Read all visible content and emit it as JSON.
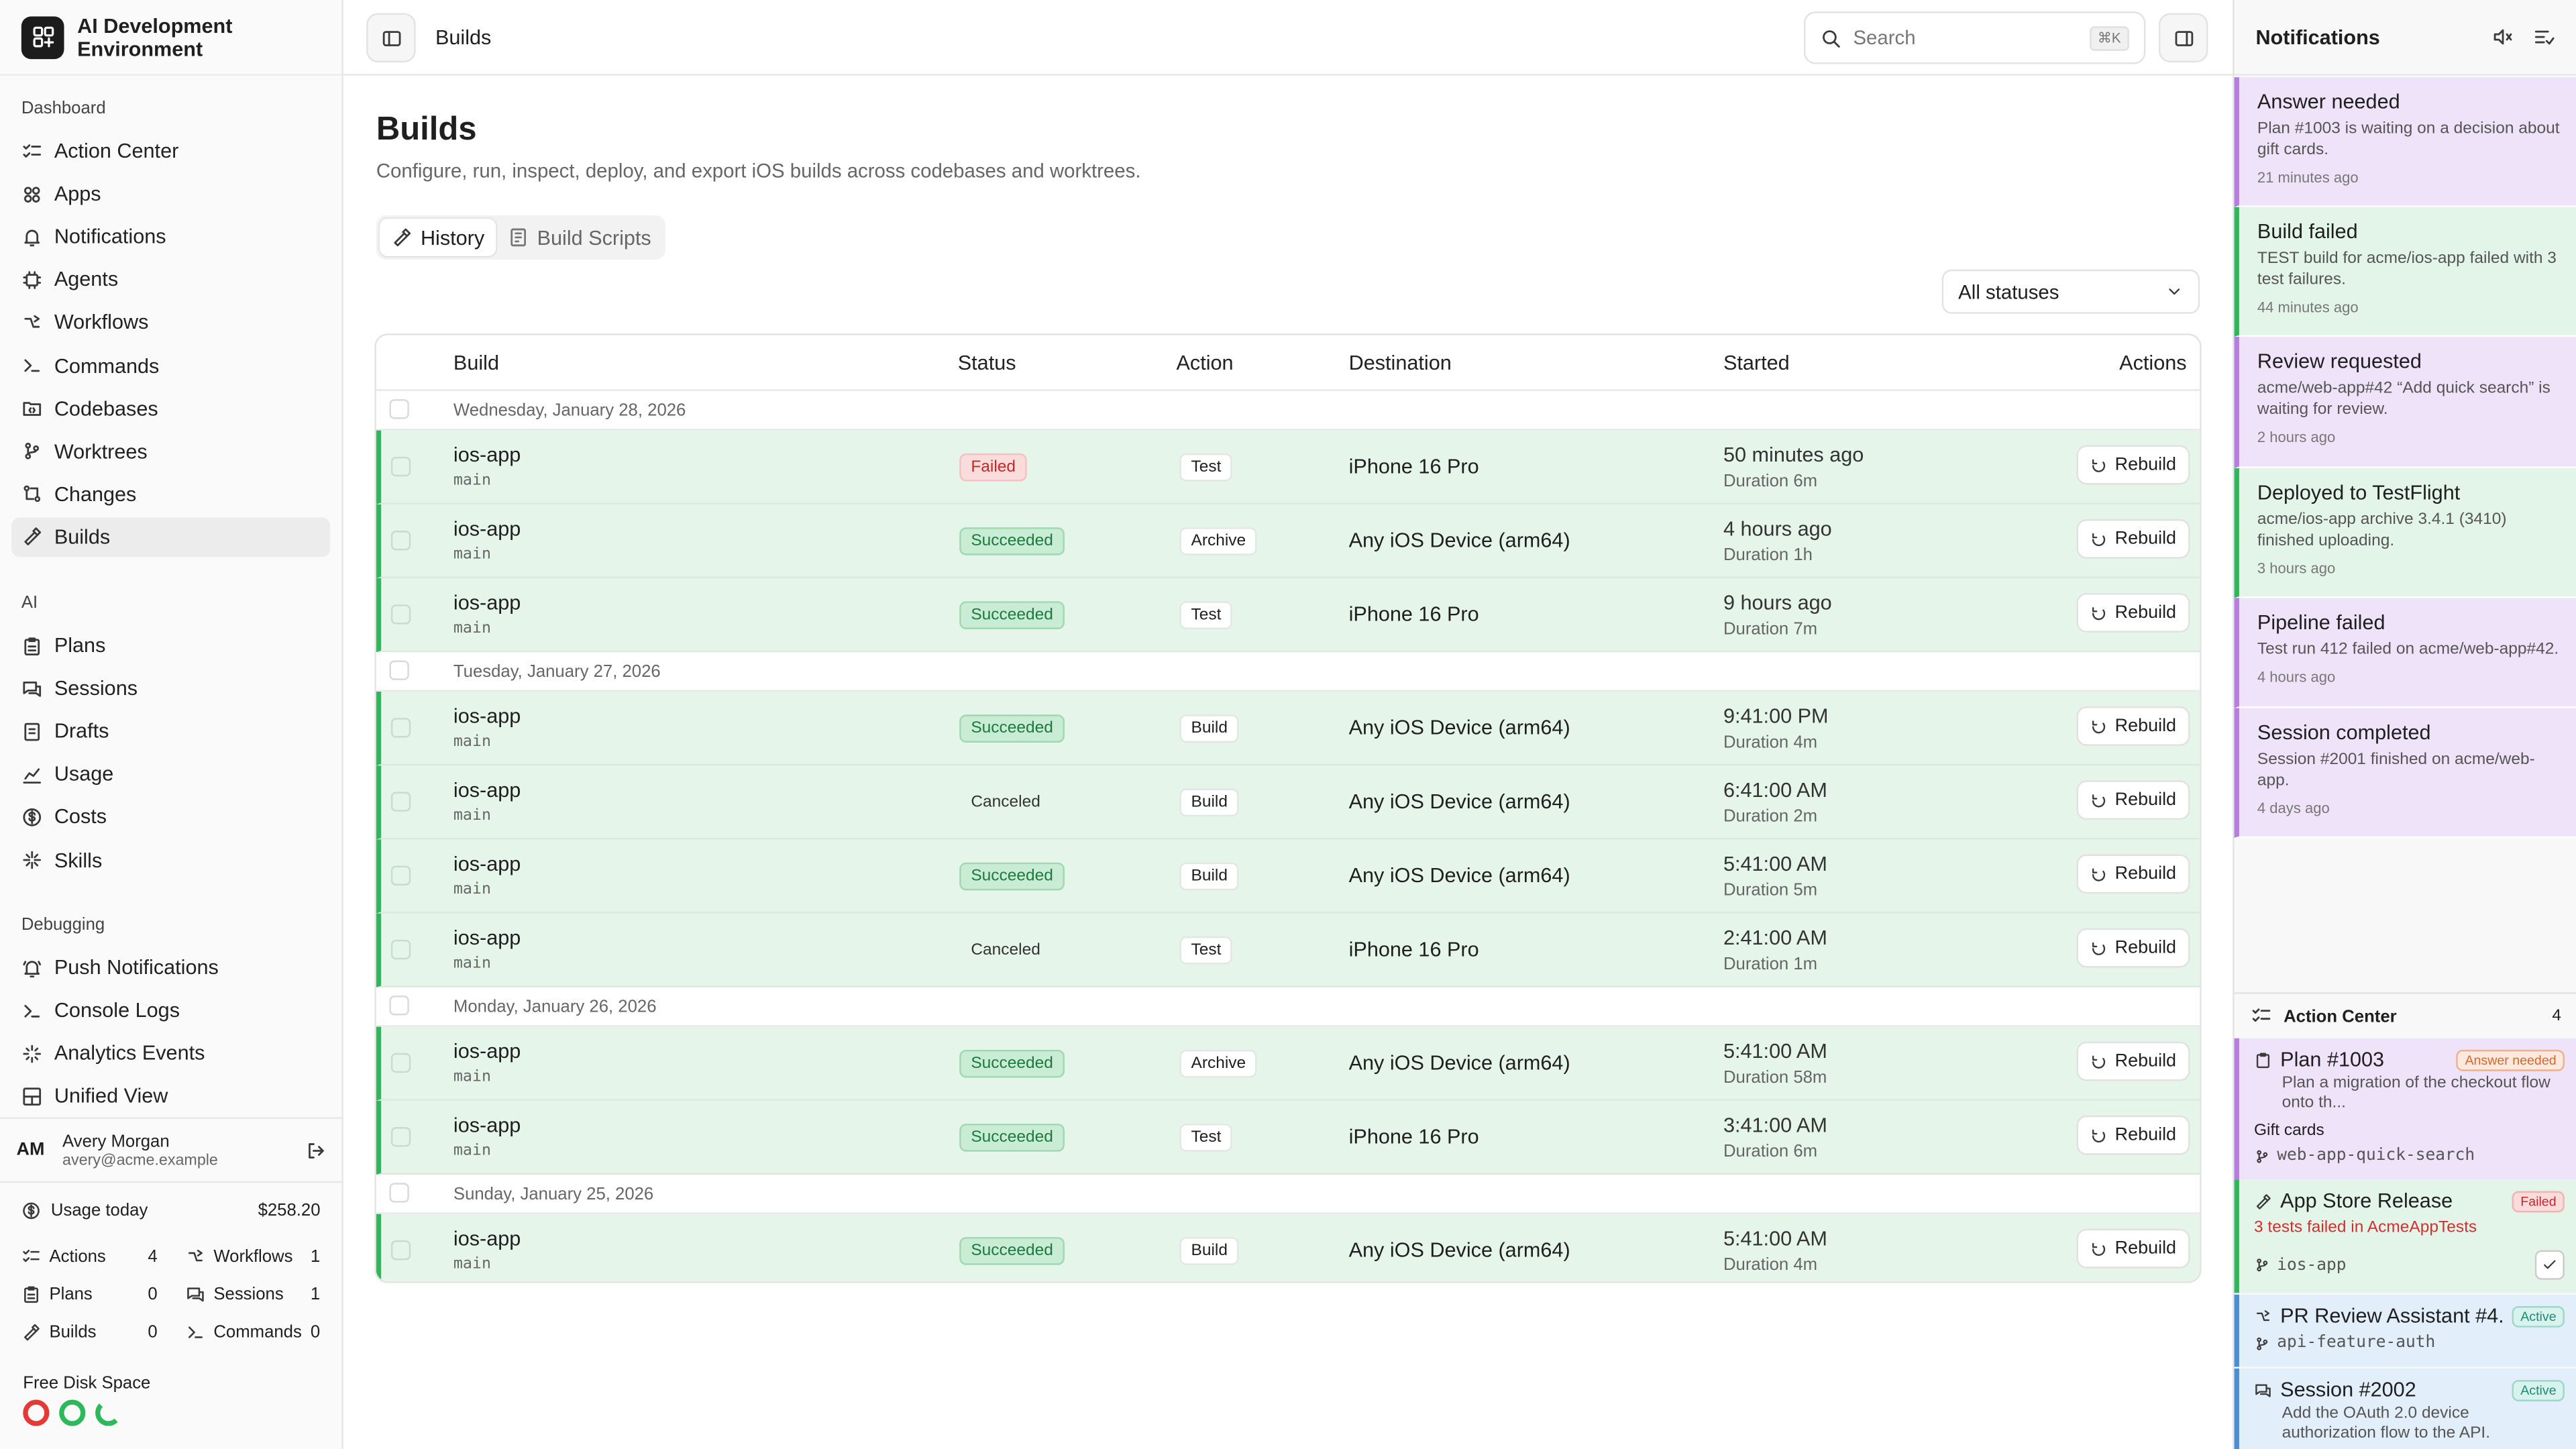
{
  "app": {
    "title": "AI Development Environment"
  },
  "sidebar": {
    "sections": [
      {
        "label": "Dashboard",
        "items": [
          {
            "label": "Action Center",
            "icon": "list-checks-icon"
          },
          {
            "label": "Apps",
            "icon": "apps-icon"
          },
          {
            "label": "Notifications",
            "icon": "bell-icon"
          },
          {
            "label": "Agents",
            "icon": "cpu-icon"
          },
          {
            "label": "Workflows",
            "icon": "workflow-icon"
          },
          {
            "label": "Commands",
            "icon": "terminal-icon"
          },
          {
            "label": "Codebases",
            "icon": "folder-code-icon"
          },
          {
            "label": "Worktrees",
            "icon": "git-branch-icon"
          },
          {
            "label": "Changes",
            "icon": "git-compare-icon"
          },
          {
            "label": "Builds",
            "icon": "hammer-icon"
          }
        ]
      },
      {
        "label": "AI",
        "items": [
          {
            "label": "Plans",
            "icon": "clipboard-icon"
          },
          {
            "label": "Sessions",
            "icon": "chat-icon"
          },
          {
            "label": "Drafts",
            "icon": "drafts-icon"
          },
          {
            "label": "Usage",
            "icon": "chart-icon"
          },
          {
            "label": "Costs",
            "icon": "dollar-icon"
          },
          {
            "label": "Skills",
            "icon": "sparkles-icon"
          }
        ]
      },
      {
        "label": "Debugging",
        "items": [
          {
            "label": "Push Notifications",
            "icon": "bell-ring-icon"
          },
          {
            "label": "Console Logs",
            "icon": "terminal-icon"
          },
          {
            "label": "Analytics Events",
            "icon": "activity-icon"
          },
          {
            "label": "Unified View",
            "icon": "layout-icon"
          }
        ]
      }
    ],
    "active": "Builds",
    "user": {
      "initials": "AM",
      "name": "Avery Morgan",
      "email": "avery@acme.example"
    },
    "usage": {
      "label": "Usage today",
      "value": "$258.20"
    },
    "stats": [
      {
        "label": "Actions",
        "value": "4",
        "icon": "list-checks-icon"
      },
      {
        "label": "Workflows",
        "value": "1",
        "icon": "workflow-icon"
      },
      {
        "label": "Plans",
        "value": "0",
        "icon": "clipboard-icon"
      },
      {
        "label": "Sessions",
        "value": "1",
        "icon": "chat-icon"
      },
      {
        "label": "Builds",
        "value": "0",
        "icon": "hammer-icon"
      },
      {
        "label": "Commands",
        "value": "0",
        "icon": "terminal-icon"
      }
    ],
    "disk": {
      "label": "Free Disk Space",
      "colors": [
        "#e53935",
        "#2eb85c",
        "#2eb85c"
      ]
    }
  },
  "topbar": {
    "breadcrumb": "Builds",
    "search_placeholder": "Search",
    "search_shortcut": "⌘K"
  },
  "page": {
    "title": "Builds",
    "subtitle": "Configure, run, inspect, deploy, and export iOS builds across codebases and worktrees.",
    "tabs": [
      {
        "label": "History",
        "active": true
      },
      {
        "label": "Build Scripts",
        "active": false
      }
    ],
    "status_filter": "All statuses",
    "columns": {
      "build": "Build",
      "status": "Status",
      "action": "Action",
      "destination": "Destination",
      "started": "Started",
      "actions": "Actions"
    },
    "rebuild_label": "Rebuild",
    "groups": [
      {
        "date": "Wednesday, January 28, 2026",
        "rows": [
          {
            "name": "ios-app",
            "branch": "main",
            "status": "Failed",
            "action": "Test",
            "destination": "iPhone 16 Pro",
            "started": "50 minutes ago",
            "duration": "Duration 6m"
          },
          {
            "name": "ios-app",
            "branch": "main",
            "status": "Succeeded",
            "action": "Archive",
            "destination": "Any iOS Device (arm64)",
            "started": "4 hours ago",
            "duration": "Duration 1h"
          },
          {
            "name": "ios-app",
            "branch": "main",
            "status": "Succeeded",
            "action": "Test",
            "destination": "iPhone 16 Pro",
            "started": "9 hours ago",
            "duration": "Duration 7m"
          }
        ]
      },
      {
        "date": "Tuesday, January 27, 2026",
        "rows": [
          {
            "name": "ios-app",
            "branch": "main",
            "status": "Succeeded",
            "action": "Build",
            "destination": "Any iOS Device (arm64)",
            "started": "9:41:00 PM",
            "duration": "Duration 4m"
          },
          {
            "name": "ios-app",
            "branch": "main",
            "status": "Canceled",
            "action": "Build",
            "destination": "Any iOS Device (arm64)",
            "started": "6:41:00 AM",
            "duration": "Duration 2m"
          },
          {
            "name": "ios-app",
            "branch": "main",
            "status": "Succeeded",
            "action": "Build",
            "destination": "Any iOS Device (arm64)",
            "started": "5:41:00 AM",
            "duration": "Duration 5m"
          },
          {
            "name": "ios-app",
            "branch": "main",
            "status": "Canceled",
            "action": "Test",
            "destination": "iPhone 16 Pro",
            "started": "2:41:00 AM",
            "duration": "Duration 1m"
          }
        ]
      },
      {
        "date": "Monday, January 26, 2026",
        "rows": [
          {
            "name": "ios-app",
            "branch": "main",
            "status": "Succeeded",
            "action": "Archive",
            "destination": "Any iOS Device (arm64)",
            "started": "5:41:00 AM",
            "duration": "Duration 58m"
          },
          {
            "name": "ios-app",
            "branch": "main",
            "status": "Succeeded",
            "action": "Test",
            "destination": "iPhone 16 Pro",
            "started": "3:41:00 AM",
            "duration": "Duration 6m"
          }
        ]
      },
      {
        "date": "Sunday, January 25, 2026",
        "rows": [
          {
            "name": "ios-app",
            "branch": "main",
            "status": "Succeeded",
            "action": "Build",
            "destination": "Any iOS Device (arm64)",
            "started": "5:41:00 AM",
            "duration": "Duration 4m"
          }
        ]
      }
    ]
  },
  "notifications": {
    "title": "Notifications",
    "items": [
      {
        "title": "Answer needed",
        "message": "Plan #1003 is waiting on a decision about gift cards.",
        "ago": "21 minutes ago",
        "bg": "#efe3fa",
        "accent": "#b57ee0"
      },
      {
        "title": "Build failed",
        "message": "TEST build for acme/ios-app failed with 3 test failures.",
        "ago": "44 minutes ago",
        "bg": "#e3f5e8",
        "accent": "#2eb85c"
      },
      {
        "title": "Review requested",
        "message": "acme/web-app#42 “Add quick search” is waiting for review.",
        "ago": "2 hours ago",
        "bg": "#efe3fa",
        "accent": "#b57ee0"
      },
      {
        "title": "Deployed to TestFlight",
        "message": "acme/ios-app archive 3.4.1 (3410) finished uploading.",
        "ago": "3 hours ago",
        "bg": "#e3f5e8",
        "accent": "#2eb85c"
      },
      {
        "title": "Pipeline failed",
        "message": "Test run 412 failed on acme/web-app#42.",
        "ago": "4 hours ago",
        "bg": "#efe3fa",
        "accent": "#b57ee0"
      },
      {
        "title": "Session completed",
        "message": "Session #2001 finished on acme/web-app.",
        "ago": "4 days ago",
        "bg": "#efe3fa",
        "accent": "#b57ee0"
      }
    ],
    "action_center": {
      "title": "Action Center",
      "count": "4",
      "items": [
        {
          "title": "Plan #1003",
          "badge": "Answer needed",
          "sub": "Plan a migration of the checkout flow onto th...",
          "extra": "Gift cards",
          "branch": "web-app-quick-search"
        },
        {
          "title": "App Store Release",
          "badge": "Failed",
          "sub": "3 tests failed in AcmeAppTests",
          "branch": "ios-app"
        },
        {
          "title": "PR Review Assistant #4...",
          "badge": "Active",
          "branch": "api-feature-auth"
        },
        {
          "title": "Session #2002",
          "badge": "Active",
          "sub": "Add the OAuth 2.0 device authorization flow to the API."
        }
      ]
    }
  }
}
